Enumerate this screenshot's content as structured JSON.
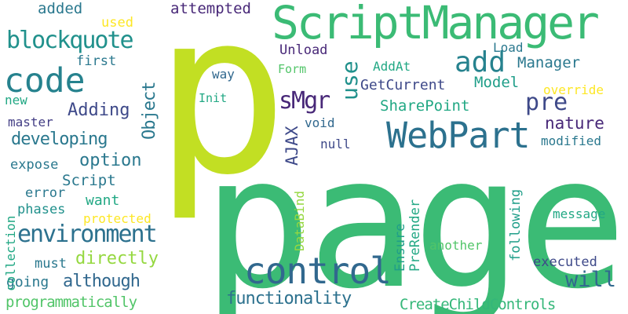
{
  "words": {
    "page": "page",
    "p": "p",
    "scriptmanager": "ScriptManager",
    "webpart": "WebPart",
    "control": "control",
    "code": "code",
    "add": "add",
    "environment": "environment",
    "blockquote": "blockquote",
    "use": "use",
    "smgr": "sMgr",
    "pre": "pre",
    "functionality": "functionality",
    "createchildcontrols": "CreateChildControls",
    "will": "will",
    "nature": "nature",
    "option": "option",
    "developing": "developing",
    "ajax": "AJAX",
    "object": "Object",
    "adding": "Adding",
    "manager": "Manager",
    "model": "Model",
    "sharepoint": "SharePoint",
    "getcurrent": "GetCurrent",
    "addat": "AddAt",
    "load": "Load",
    "unload": "Unload",
    "form": "Form",
    "way": "way",
    "init": "Init",
    "override": "override",
    "modified": "modified",
    "void": "void",
    "null": "null",
    "message": "message",
    "executed": "executed",
    "following": "following",
    "ensure": "Ensure",
    "prerender": "PreRender",
    "another": "another",
    "databind": "DataBind",
    "directly": "directly",
    "although": "although",
    "going": "going",
    "must": "must",
    "collection": "collection",
    "phases": "phases",
    "error": "error",
    "expose": "expose",
    "script": "Script",
    "want": "want",
    "protected": "protected",
    "programmatically": "programmatically",
    "master": "master",
    "new": "new",
    "first": "first",
    "added": "added",
    "used": "used",
    "attempted": "attempted"
  }
}
